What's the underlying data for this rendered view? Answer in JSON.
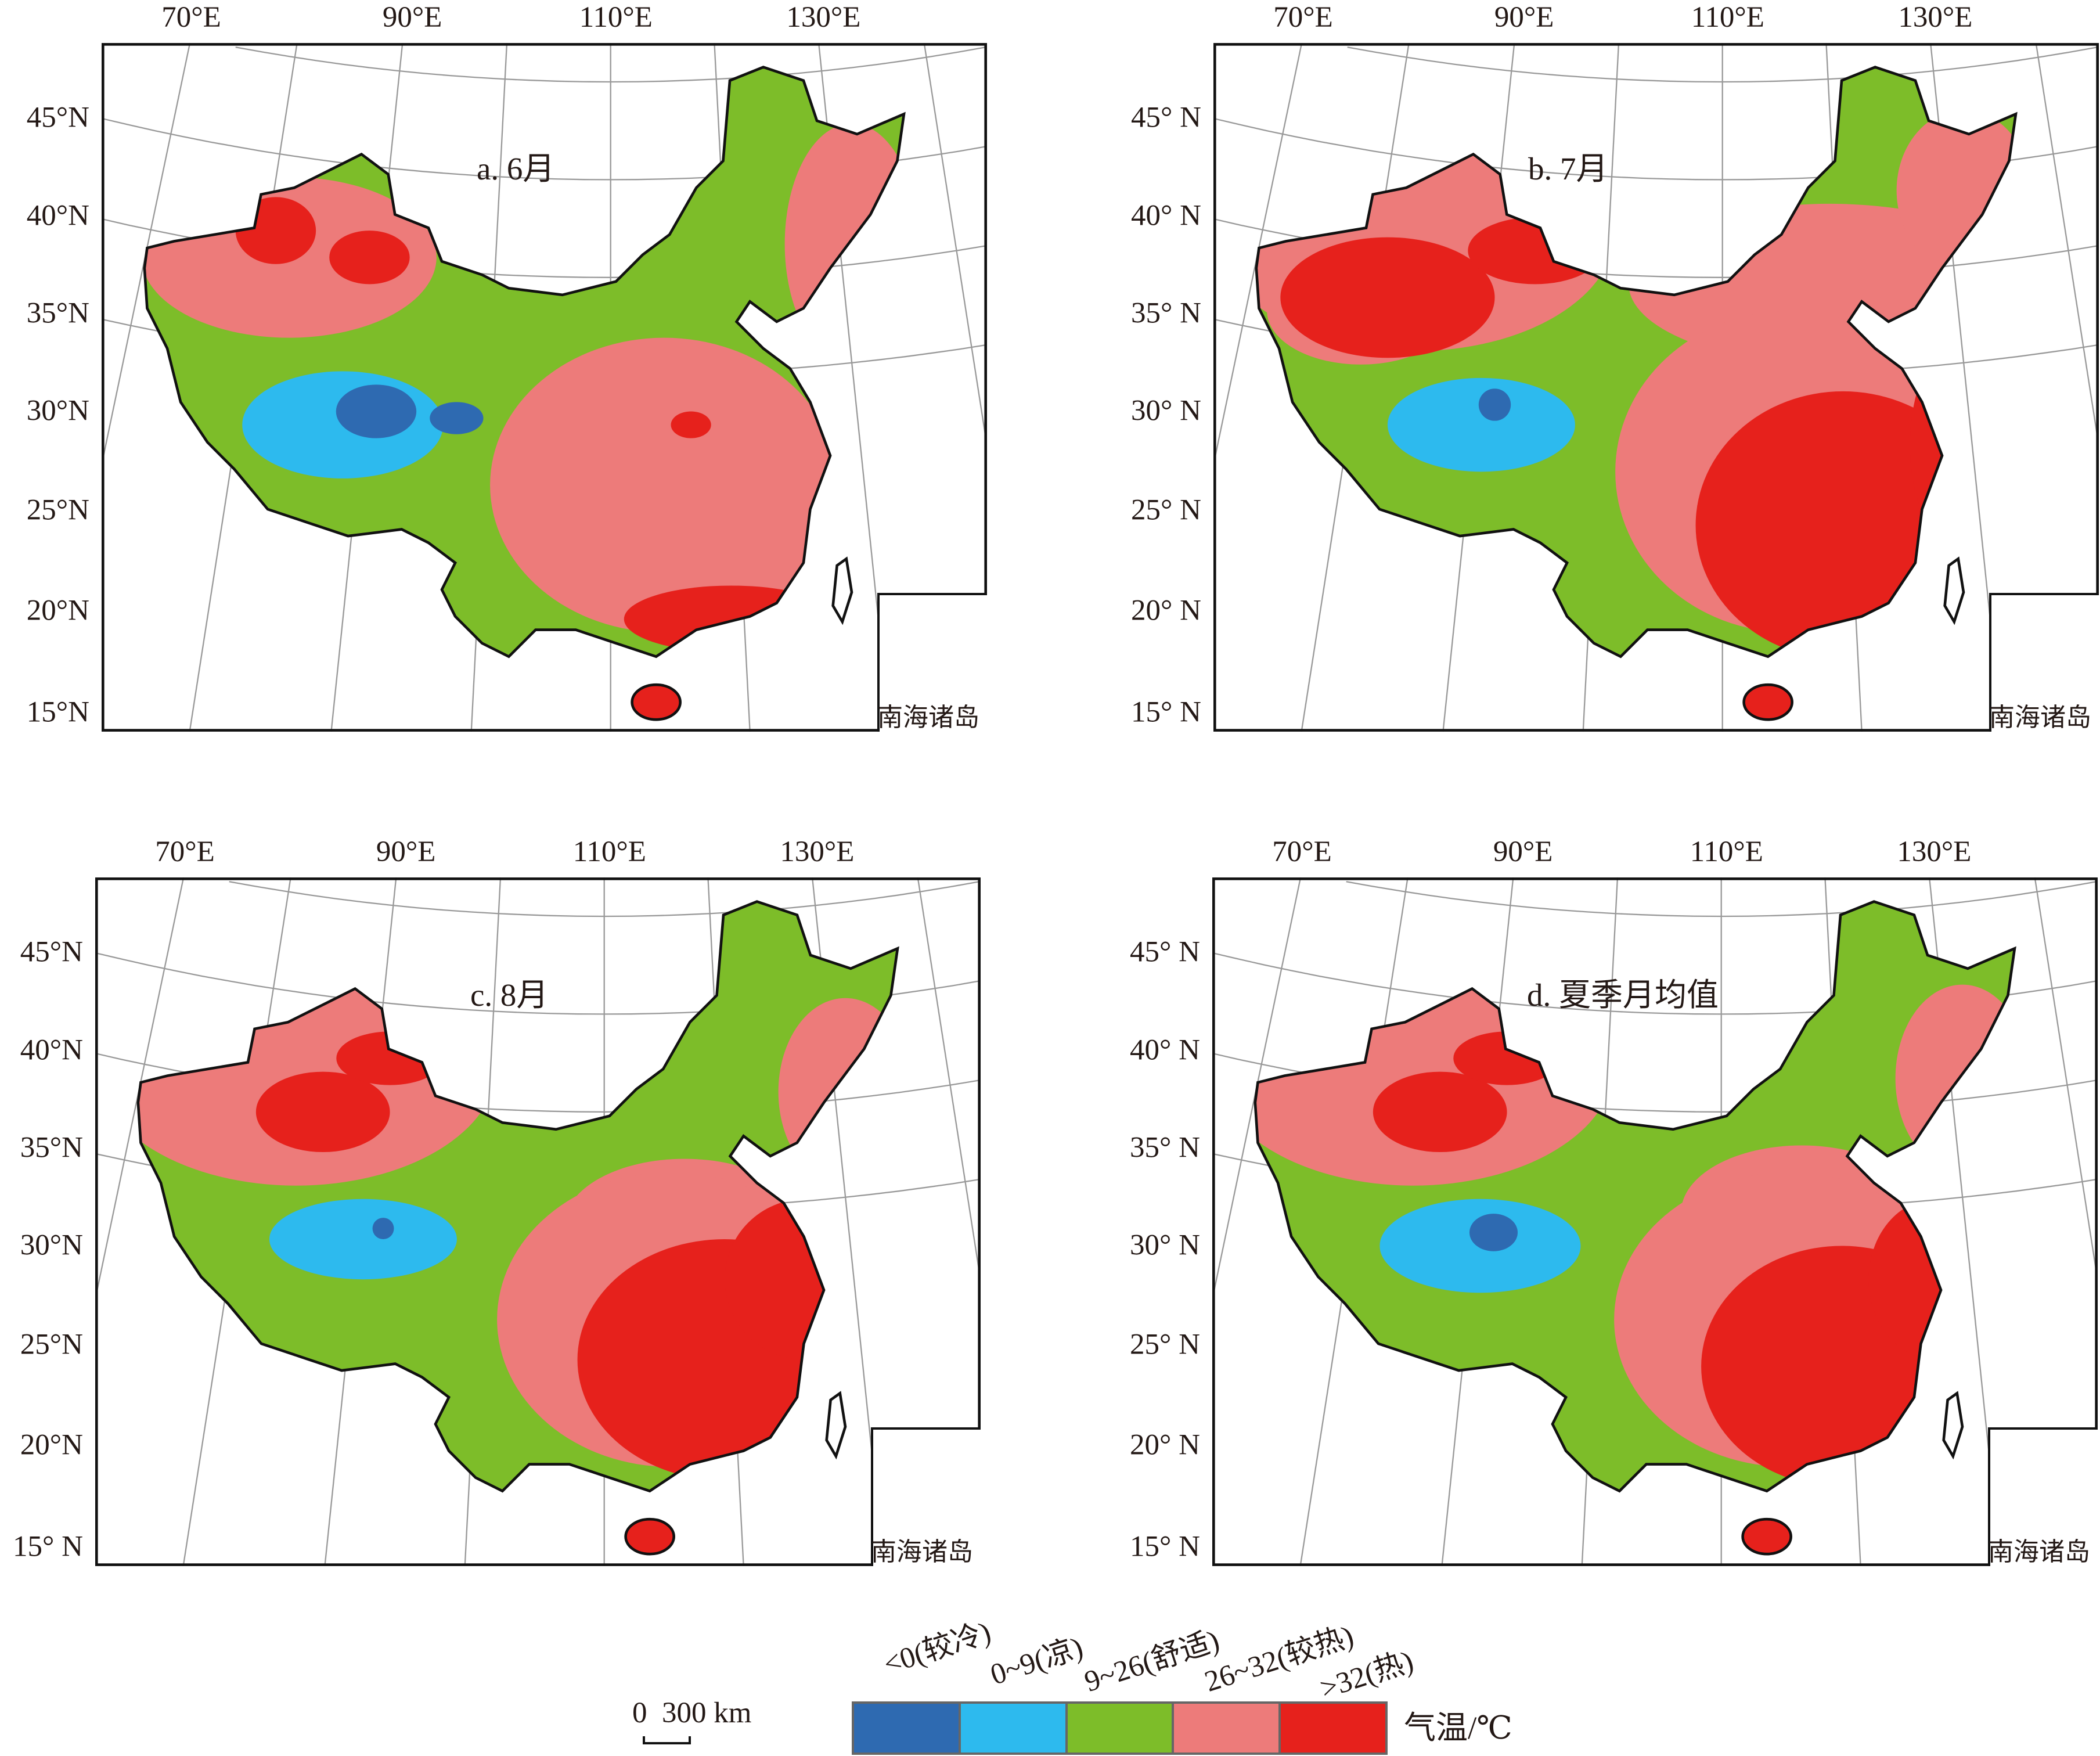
{
  "panels": [
    {
      "id": "a",
      "title": "a. 6月",
      "lon_labels": [
        "70°E",
        "90°E",
        "110°E",
        "130°E"
      ],
      "lat_labels": [
        "45°N",
        "40°N",
        "35°N",
        "30°N",
        "25°N",
        "20°N",
        "15°N"
      ],
      "inset_label": "南海诸岛"
    },
    {
      "id": "b",
      "title": "b. 7月",
      "lon_labels": [
        "70°E",
        "90°E",
        "110°E",
        "130°E"
      ],
      "lat_labels": [
        "45° N",
        "40° N",
        "35° N",
        "30° N",
        "25° N",
        "20° N",
        "15° N"
      ],
      "inset_label": "南海诸岛"
    },
    {
      "id": "c",
      "title": "c. 8月",
      "lon_labels": [
        "70°E",
        "90°E",
        "110°E",
        "130°E"
      ],
      "lat_labels": [
        "45°N",
        "40°N",
        "35°N",
        "30°N",
        "25°N",
        "20°N",
        "15° N"
      ],
      "inset_label": "南海诸岛"
    },
    {
      "id": "d",
      "title": "d. 夏季月均值",
      "lon_labels": [
        "70°E",
        "90°E",
        "110°E",
        "130°E"
      ],
      "lat_labels": [
        "45° N",
        "40° N",
        "35° N",
        "30° N",
        "25° N",
        "20° N",
        "15° N"
      ],
      "inset_label": "南海诸岛"
    }
  ],
  "scale_bar": {
    "label": "0  300 km"
  },
  "legend": {
    "unit": "气温/℃",
    "classes": [
      {
        "label": "<0(较冷)",
        "color": "#2e6ab1"
      },
      {
        "label": "0~9(凉)",
        "color": "#2dbaee"
      },
      {
        "label": "9~26(舒适)",
        "color": "#7dbd29"
      },
      {
        "label": "26~32(较热)",
        "color": "#ed7b7a"
      },
      {
        "label": ">32(热)",
        "color": "#e6211c"
      }
    ]
  }
}
